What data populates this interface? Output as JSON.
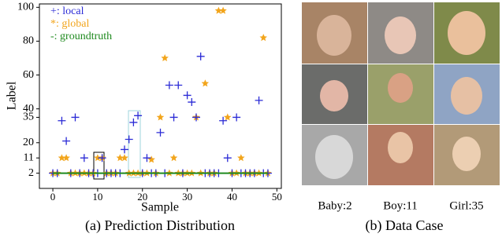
{
  "chart_data": {
    "type": "scatter",
    "xlabel": "Sample",
    "ylabel": "Label",
    "caption": "(a) Prediction Distribution",
    "x": [
      0,
      1,
      2,
      3,
      4,
      5,
      6,
      7,
      8,
      9,
      10,
      11,
      12,
      13,
      14,
      15,
      16,
      17,
      18,
      19,
      20,
      21,
      22,
      23,
      24,
      25,
      26,
      27,
      28,
      29,
      30,
      31,
      32,
      33,
      34,
      35,
      36,
      37,
      38,
      39,
      40,
      41,
      42,
      43,
      44,
      45,
      46,
      47,
      48
    ],
    "series": [
      {
        "name": "+: local",
        "marker": "plus",
        "color": "#2b2bd6",
        "values": [
          2,
          2,
          33,
          21,
          2,
          35,
          2,
          11,
          2,
          2,
          2,
          11,
          2,
          2,
          2,
          2,
          16,
          22,
          32,
          36,
          2,
          11,
          2,
          2,
          26,
          2,
          54,
          35,
          54,
          2,
          48,
          44,
          35,
          71,
          2,
          2,
          2,
          2,
          33,
          11,
          2,
          35,
          2,
          2,
          2,
          2,
          45,
          2,
          2
        ]
      },
      {
        "name": "*: global",
        "marker": "star",
        "color": "#f2a51c",
        "values": [
          2,
          2,
          11,
          11,
          2,
          2,
          2,
          2,
          2,
          2,
          11,
          11,
          2,
          2,
          2,
          11,
          11,
          2,
          2,
          2,
          2,
          2,
          10,
          2,
          35,
          70,
          2,
          11,
          2,
          2,
          2,
          2,
          35,
          2,
          55,
          2,
          2,
          98,
          98,
          35,
          2,
          2,
          11,
          2,
          2,
          2,
          2,
          82,
          2
        ]
      },
      {
        "name": "-: groundtruth",
        "marker": "line",
        "color": "#1f8a1f",
        "values": [
          2,
          2,
          2,
          2,
          2,
          2,
          2,
          2,
          2,
          2,
          2,
          2,
          2,
          2,
          2,
          2,
          2,
          2,
          2,
          2,
          2,
          2,
          2,
          2,
          2,
          2,
          2,
          2,
          2,
          2,
          2,
          2,
          2,
          2,
          2,
          2,
          2,
          2,
          2,
          2,
          2,
          2,
          2,
          2,
          2,
          2,
          2,
          2,
          2
        ]
      }
    ],
    "xlim": [
      -3,
      51
    ],
    "ylim": [
      -7,
      102
    ],
    "xticks": [
      0,
      10,
      20,
      30,
      40,
      50
    ],
    "yticks": [
      2,
      11,
      20,
      35,
      40,
      60,
      80,
      100
    ],
    "grid": false,
    "legend": "upper left"
  },
  "panel_b": {
    "caption": "(b) Data Case",
    "labels": [
      "Baby:2",
      "Boy:11",
      "Girl:35"
    ]
  }
}
